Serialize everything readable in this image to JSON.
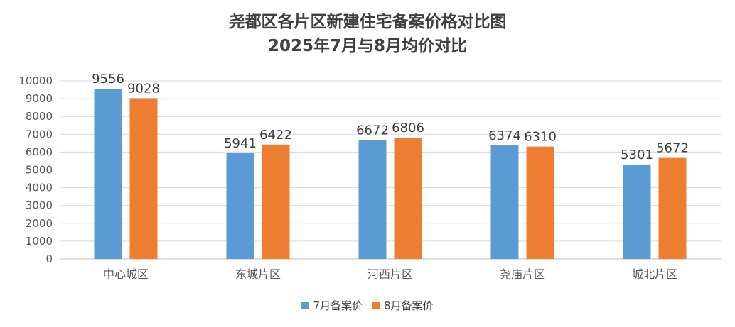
{
  "chart_data": {
    "type": "bar",
    "title_lines": [
      "尧都区各片区新建住宅备案价格对比图",
      "2025年7月与8月均价对比"
    ],
    "categories": [
      "中心城区",
      "东城片区",
      "河西片区",
      "尧庙片区",
      "城北片区"
    ],
    "series": [
      {
        "name": "7月备案价",
        "color": "#5b9bd5",
        "values": [
          9556,
          5941,
          6672,
          6374,
          5301
        ]
      },
      {
        "name": "8月备案价",
        "color": "#ed7d31",
        "values": [
          9028,
          6422,
          6806,
          6310,
          5672
        ]
      }
    ],
    "ylim": [
      0,
      10000
    ],
    "ytick_step": 1000,
    "grid": true,
    "legend_position": "bottom",
    "data_labels": true
  }
}
